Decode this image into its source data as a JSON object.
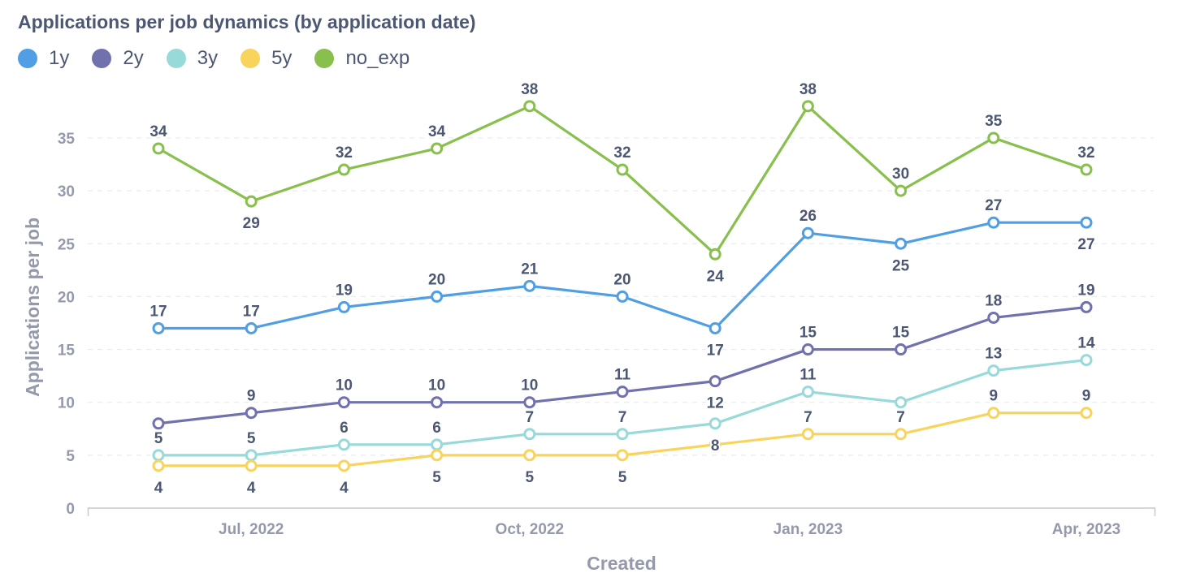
{
  "chart_data": {
    "type": "line",
    "title": "Applications per job dynamics (by application date)",
    "xlabel": "Created",
    "ylabel": "Applications per job",
    "ylim": [
      0,
      38
    ],
    "yticks": [
      0,
      5,
      10,
      15,
      20,
      25,
      30,
      35
    ],
    "x": [
      "2022-06",
      "2022-07",
      "2022-08",
      "2022-09",
      "2022-10",
      "2022-11",
      "2022-12",
      "2023-01",
      "2023-02",
      "2023-03",
      "2023-04"
    ],
    "xticks": [
      {
        "at": "2022-07",
        "label": "Jul, 2022"
      },
      {
        "at": "2022-10",
        "label": "Oct, 2022"
      },
      {
        "at": "2023-01",
        "label": "Jan, 2023"
      },
      {
        "at": "2023-04",
        "label": "Apr, 2023"
      }
    ],
    "grid": "horizontal dashed",
    "legend_position": "top-left",
    "series": [
      {
        "name": "1y",
        "color": "#509ee3",
        "values": [
          17,
          17,
          19,
          20,
          21,
          20,
          17,
          26,
          25,
          27,
          27
        ],
        "label_side": [
          "above",
          "above",
          "above",
          "above",
          "above",
          "above",
          "below",
          "above",
          "below",
          "above",
          "below"
        ]
      },
      {
        "name": "2y",
        "color": "#7172ad",
        "values": [
          8,
          9,
          10,
          10,
          10,
          11,
          12,
          15,
          15,
          18,
          19
        ],
        "label_side": [
          "none",
          "above",
          "above",
          "above",
          "above",
          "above",
          "below",
          "above",
          "above",
          "above",
          "above"
        ]
      },
      {
        "name": "3y",
        "color": "#98d9d9",
        "values": [
          5,
          5,
          6,
          6,
          7,
          7,
          8,
          11,
          10,
          13,
          14
        ],
        "label_side": [
          "above",
          "above",
          "above",
          "above",
          "above",
          "above",
          "none",
          "above",
          "none",
          "above",
          "above"
        ]
      },
      {
        "name": "5y",
        "color": "#f9d45c",
        "values": [
          4,
          4,
          4,
          5,
          5,
          5,
          6,
          7,
          7,
          9,
          9
        ],
        "label_side": [
          "below",
          "below",
          "below",
          "below",
          "below",
          "below",
          "none",
          "above",
          "above",
          "above",
          "above"
        ]
      },
      {
        "name": "no_exp",
        "color": "#88bf4d",
        "values": [
          34,
          29,
          32,
          34,
          38,
          32,
          24,
          38,
          30,
          35,
          32
        ],
        "label_side": [
          "above",
          "below",
          "above",
          "above",
          "above",
          "above",
          "below",
          "above",
          "above",
          "above",
          "above"
        ]
      }
    ],
    "extra_labels": [
      {
        "series": "2y",
        "x": "2022-12",
        "text": "12"
      },
      {
        "series": "3y",
        "x": "2022-12",
        "text": "8"
      }
    ]
  }
}
